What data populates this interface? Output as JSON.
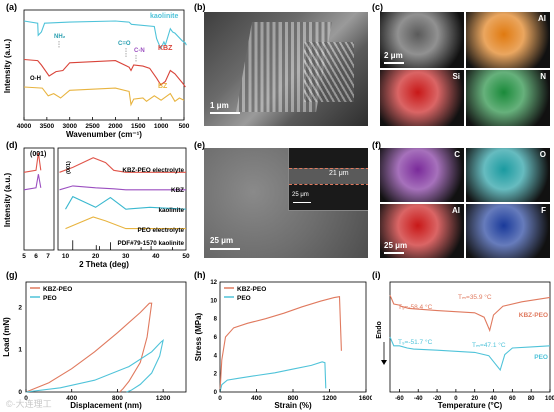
{
  "panels": {
    "a": {
      "label": "(a)",
      "xlabel": "Wavenumber (cm⁻¹)",
      "ylabel": "Intensity (a.u.)",
      "xticks": [
        "4000",
        "3500",
        "3000",
        "2500",
        "2000",
        "1500",
        "1000",
        "500"
      ],
      "series": [
        {
          "name": "kaolinite",
          "color": "#4fc3d9"
        },
        {
          "name": "KBZ",
          "color": "#d9443a"
        },
        {
          "name": "BZ",
          "color": "#e8b440"
        }
      ],
      "annotations": [
        {
          "text": "O-H",
          "color": "#000000"
        },
        {
          "text": "NH₂",
          "color": "#2a9fb0"
        },
        {
          "text": "C=O",
          "color": "#2a9fb0"
        },
        {
          "text": "C-N",
          "color": "#9b4fc0"
        }
      ]
    },
    "b": {
      "label": "(b)",
      "scalebar": "1 μm"
    },
    "c": {
      "label": "(c)",
      "scalebar": "2 μm",
      "tiles": [
        {
          "name": "sem",
          "text": "",
          "color": "#5a5a5a"
        },
        {
          "name": "Al",
          "text": "Al",
          "color": "#e07a10"
        },
        {
          "name": "Si",
          "text": "Si",
          "color": "#c81818"
        },
        {
          "name": "N",
          "text": "N",
          "color": "#1a8a3a"
        }
      ]
    },
    "d": {
      "label": "(d)",
      "xlabel": "2 Theta (deg)",
      "ylabel": "Intensity (a.u.)",
      "xticks_left": [
        "5",
        "6",
        "7"
      ],
      "xticks_right": [
        "10",
        "20",
        "30",
        "40",
        "50"
      ],
      "peak_label": "(001)",
      "peak_label_small": "(001)",
      "series": [
        {
          "name": "KBZ-PEO electrolyte",
          "color": "#e0554a"
        },
        {
          "name": "KBZ",
          "color": "#9b4fc0"
        },
        {
          "name": "kaolinite",
          "color": "#3ab8cf"
        },
        {
          "name": "PEO electrolyte",
          "color": "#e8b440"
        },
        {
          "name": "PDF#79-1570 kaolinite",
          "color": "#000000"
        }
      ]
    },
    "e": {
      "label": "(e)",
      "scalebar": "25 μm",
      "inset_scalebar": "25 μm",
      "thickness": "21 μm"
    },
    "f": {
      "label": "(f)",
      "scalebar": "25 μm",
      "tiles": [
        {
          "name": "C",
          "text": "C",
          "color": "#7a2a9a"
        },
        {
          "name": "O",
          "text": "O",
          "color": "#1a9aa0"
        },
        {
          "name": "Al",
          "text": "Al",
          "color": "#c81818"
        },
        {
          "name": "F",
          "text": "F",
          "color": "#1a3a9a"
        }
      ]
    },
    "g": {
      "label": "(g)",
      "xlabel": "Displacement (nm)",
      "ylabel": "Load (mN)",
      "xticks": [
        "0",
        "400",
        "800",
        "1200"
      ],
      "yticks": [
        "0",
        "1",
        "2"
      ],
      "legend": [
        {
          "name": "KBZ-PEO",
          "color": "#e07a5f"
        },
        {
          "name": "PEO",
          "color": "#4fc3d9"
        }
      ]
    },
    "h": {
      "label": "(h)",
      "xlabel": "Strain (%)",
      "ylabel": "Stress (MPa)",
      "xticks": [
        "0",
        "400",
        "800",
        "1200",
        "1600"
      ],
      "yticks": [
        "0",
        "2",
        "4",
        "6",
        "8",
        "10",
        "12"
      ],
      "legend": [
        {
          "name": "KBZ-PEO",
          "color": "#e07a5f"
        },
        {
          "name": "PEO",
          "color": "#4fc3d9"
        }
      ]
    },
    "i": {
      "label": "(i)",
      "xlabel": "Temperature (°C)",
      "ylabel": "Endo",
      "xticks": [
        "-60",
        "-40",
        "-20",
        "0",
        "20",
        "40",
        "60",
        "80",
        "100"
      ],
      "series": [
        {
          "name": "KBZ-PEO",
          "color": "#e07a5f",
          "tg": "T₉=-58.4 °C",
          "tm": "Tₘ=35.9 °C"
        },
        {
          "name": "PEO",
          "color": "#4fc3d9",
          "tg": "T₉=-51.7 °C",
          "tm": "Tₘ=47.1 °C"
        }
      ]
    }
  },
  "chart_data": [
    {
      "type": "line",
      "title": "",
      "xlabel": "Wavenumber (cm⁻¹)",
      "ylabel": "Intensity (a.u.)",
      "xlim": [
        4000,
        500
      ],
      "series": [
        {
          "name": "kaolinite",
          "x": [
            4000,
            3700,
            3690,
            3620,
            3550,
            3000,
            2000,
            1700,
            1650,
            1150,
            1100,
            1030,
            1010,
            940,
            910,
            800,
            750,
            700,
            540,
            470,
            450
          ],
          "y": [
            0.9,
            0.88,
            0.77,
            0.8,
            0.88,
            0.89,
            0.9,
            0.89,
            0.87,
            0.85,
            0.74,
            0.67,
            0.65,
            0.71,
            0.68,
            0.83,
            0.8,
            0.79,
            0.72,
            0.7,
            0.68
          ]
        },
        {
          "name": "KBZ",
          "x": [
            4000,
            3700,
            3620,
            3450,
            3300,
            3150,
            3000,
            2000,
            1700,
            1660,
            1600,
            1400,
            1250,
            1100,
            1010,
            910,
            800,
            700,
            540,
            470
          ],
          "y": [
            0.55,
            0.54,
            0.5,
            0.4,
            0.44,
            0.45,
            0.52,
            0.54,
            0.48,
            0.45,
            0.5,
            0.49,
            0.47,
            0.38,
            0.32,
            0.35,
            0.45,
            0.42,
            0.34,
            0.3
          ]
        },
        {
          "name": "BZ",
          "x": [
            4000,
            3600,
            3470,
            3350,
            3200,
            3000,
            2000,
            1700,
            1660,
            1600,
            1400,
            1320,
            1150,
            1000,
            800,
            700,
            600,
            500
          ],
          "y": [
            0.3,
            0.29,
            0.22,
            0.24,
            0.2,
            0.27,
            0.29,
            0.26,
            0.14,
            0.19,
            0.2,
            0.17,
            0.22,
            0.18,
            0.24,
            0.17,
            0.2,
            0.18
          ]
        }
      ]
    },
    {
      "type": "line",
      "title": "",
      "xlabel": "2 Theta (deg)",
      "ylabel": "Intensity (a.u.)",
      "xlim": [
        5,
        50
      ],
      "series": [
        {
          "name": "KBZ-PEO electrolyte",
          "x": [
            5,
            6.0,
            6.2,
            6.4,
            8,
            12.4,
            19.2,
            23.3,
            26,
            30,
            40,
            50
          ],
          "y": [
            0.8,
            0.82,
            1.0,
            0.82,
            0.8,
            0.85,
            0.95,
            0.9,
            0.82,
            0.8,
            0.8,
            0.8
          ]
        },
        {
          "name": "KBZ",
          "x": [
            5,
            6.0,
            6.2,
            6.4,
            8,
            12.4,
            20,
            26,
            30,
            40,
            50
          ],
          "y": [
            0.62,
            0.64,
            0.78,
            0.64,
            0.62,
            0.66,
            0.64,
            0.63,
            0.62,
            0.62,
            0.62
          ]
        },
        {
          "name": "kaolinite",
          "x": [
            5,
            10,
            12.4,
            20,
            24.9,
            30,
            38,
            50
          ],
          "y": [
            0.42,
            0.42,
            0.55,
            0.44,
            0.54,
            0.42,
            0.44,
            0.42
          ]
        },
        {
          "name": "PEO electrolyte",
          "x": [
            5,
            10,
            19.2,
            23.3,
            30,
            50
          ],
          "y": [
            0.22,
            0.22,
            0.34,
            0.3,
            0.22,
            0.22
          ]
        },
        {
          "name": "PDF#79-1570 kaolinite",
          "x": [
            12.4,
            20.2,
            21.3,
            24.9,
            35.1,
            38.4,
            45.5
          ],
          "y": [
            0.1,
            0.05,
            0.04,
            0.08,
            0.03,
            0.04,
            0.03
          ]
        }
      ]
    },
    {
      "type": "line",
      "title": "",
      "xlabel": "Displacement (nm)",
      "ylabel": "Load (mN)",
      "xlim": [
        0,
        1400
      ],
      "ylim": [
        0,
        2.6
      ],
      "series": [
        {
          "name": "KBZ-PEO",
          "x": [
            0,
            200,
            400,
            600,
            800,
            1000,
            1080,
            1100,
            1060,
            1000,
            900,
            850,
            820
          ],
          "y": [
            0,
            0.22,
            0.55,
            0.95,
            1.4,
            1.88,
            2.1,
            2.1,
            1.3,
            0.7,
            0.25,
            0.08,
            0
          ]
        },
        {
          "name": "PEO",
          "x": [
            0,
            300,
            600,
            900,
            1100,
            1180,
            1200,
            1170,
            1100,
            1000,
            920,
            880
          ],
          "y": [
            0,
            0.1,
            0.28,
            0.6,
            0.95,
            1.18,
            1.22,
            0.85,
            0.45,
            0.18,
            0.04,
            0
          ]
        }
      ]
    },
    {
      "type": "line",
      "title": "",
      "xlabel": "Strain (%)",
      "ylabel": "Stress (MPa)",
      "xlim": [
        0,
        1600
      ],
      "ylim": [
        0,
        12
      ],
      "series": [
        {
          "name": "KBZ-PEO",
          "x": [
            0,
            20,
            60,
            150,
            300,
            500,
            700,
            900,
            1100,
            1250,
            1310,
            1330
          ],
          "y": [
            0,
            3.5,
            6.0,
            7.0,
            7.5,
            8.0,
            8.6,
            9.3,
            9.9,
            10.3,
            10.4,
            4.5
          ]
        },
        {
          "name": "PEO",
          "x": [
            0,
            20,
            80,
            200,
            400,
            600,
            800,
            1000,
            1120,
            1150,
            1160
          ],
          "y": [
            0,
            0.8,
            1.3,
            1.5,
            1.8,
            2.1,
            2.5,
            2.9,
            3.3,
            3.2,
            0.4
          ]
        }
      ]
    },
    {
      "type": "line",
      "title": "",
      "xlabel": "Temperature (°C)",
      "ylabel": "Endo",
      "xlim": [
        -70,
        100
      ],
      "series": [
        {
          "name": "KBZ-PEO",
          "x": [
            -70,
            -66,
            -60,
            -58.4,
            -50,
            -20,
            0,
            20,
            30,
            35.9,
            40,
            50,
            70,
            100
          ],
          "y": [
            0.88,
            0.8,
            0.79,
            0.78,
            0.76,
            0.74,
            0.73,
            0.72,
            0.68,
            0.56,
            0.7,
            0.78,
            0.82,
            0.86
          ]
        },
        {
          "name": "PEO",
          "x": [
            -70,
            -66,
            -60,
            -51.7,
            -45,
            -20,
            0,
            20,
            35,
            47.1,
            52,
            60,
            80,
            100
          ],
          "y": [
            0.5,
            0.42,
            0.42,
            0.4,
            0.39,
            0.38,
            0.37,
            0.36,
            0.33,
            0.2,
            0.34,
            0.4,
            0.41,
            0.42
          ]
        }
      ]
    }
  ],
  "watermark": "©·大连理工"
}
